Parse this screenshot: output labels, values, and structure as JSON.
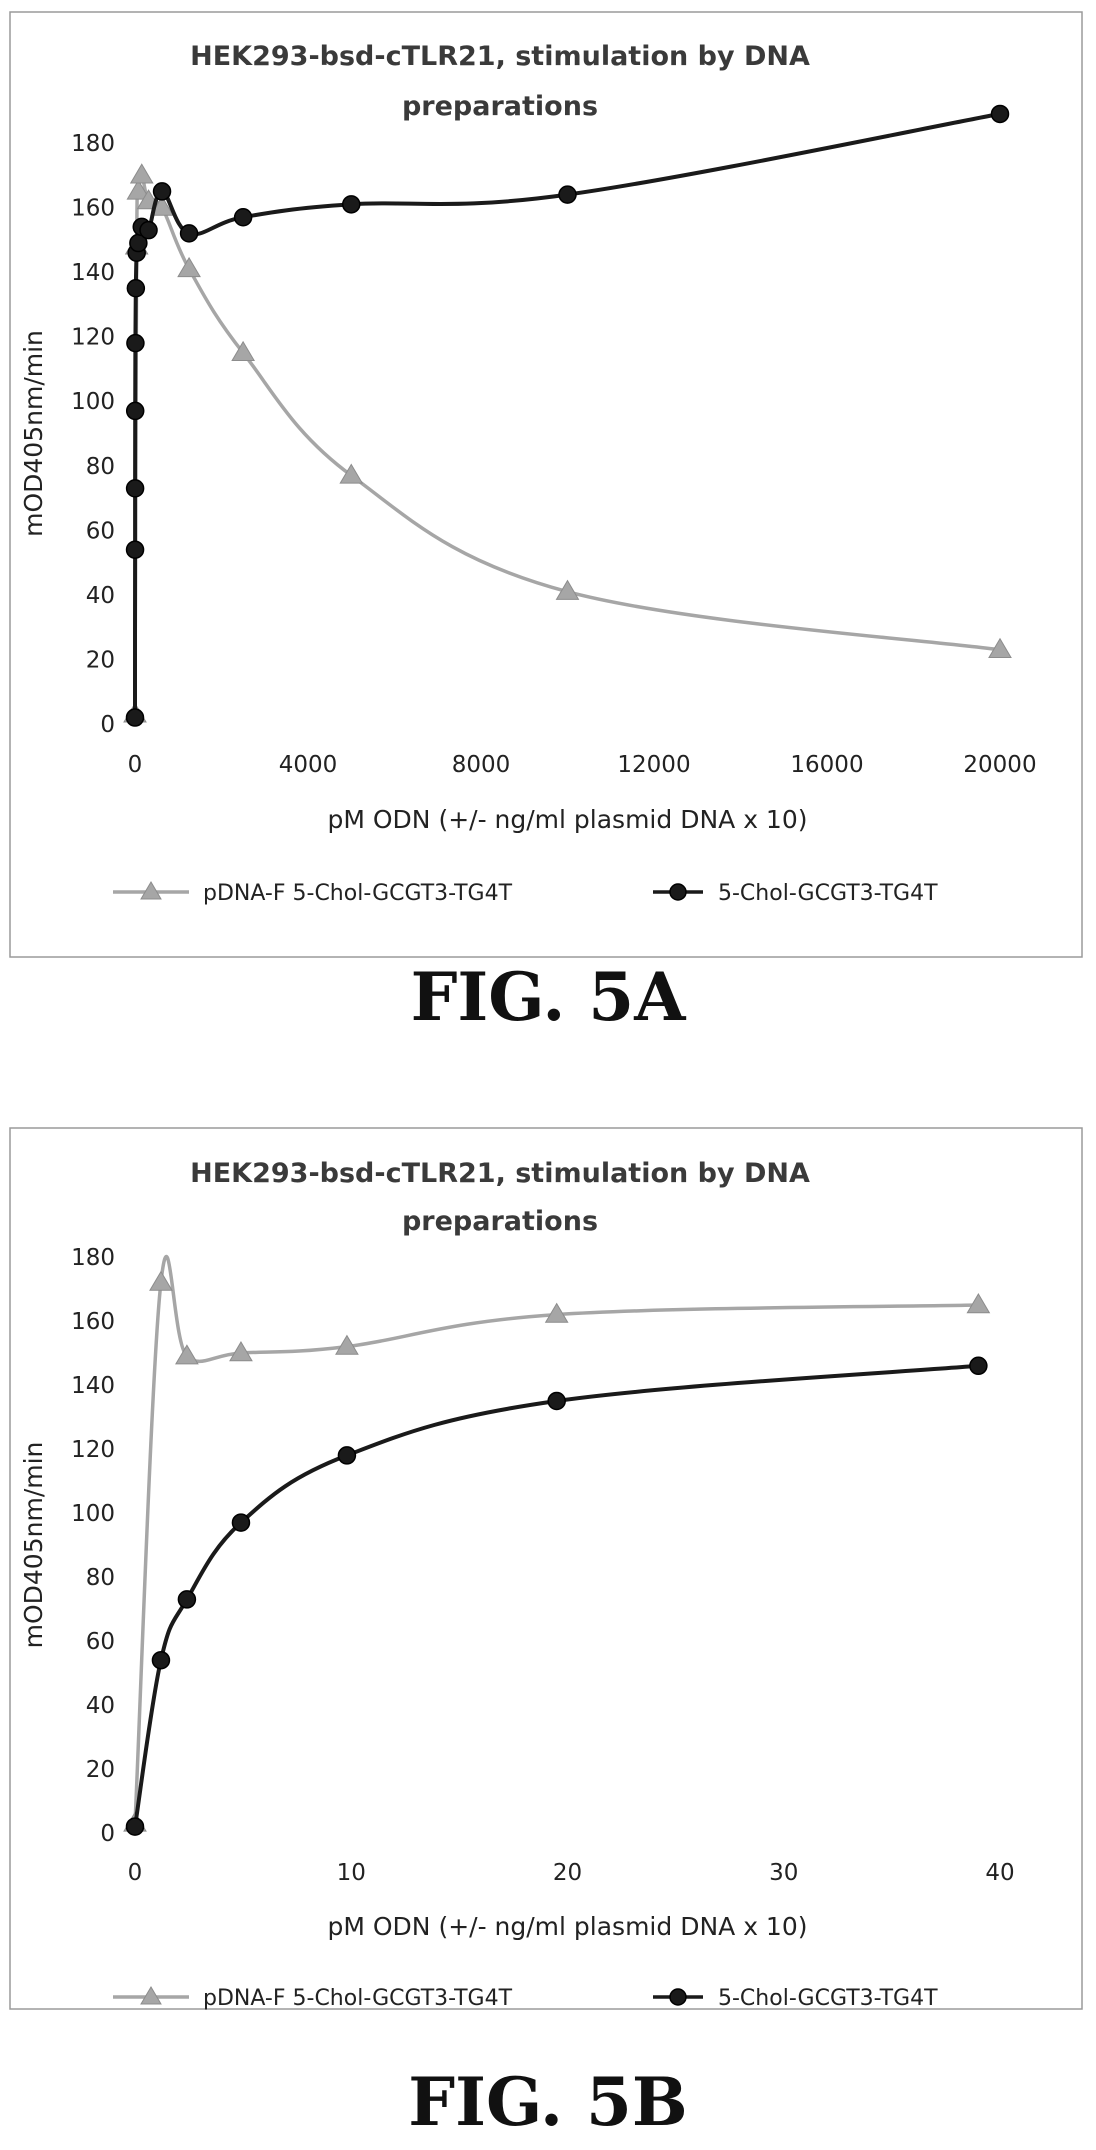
{
  "chart_data": [
    {
      "type": "line",
      "title": "HEK293-bsd-cTLR21, stimulation by DNA preparations",
      "title_lines": [
        "HEK293-bsd-cTLR21, stimulation by DNA",
        "preparations"
      ],
      "xlabel": "pM ODN (+/- ng/ml plasmid DNA  x 10)",
      "ylabel": "mOD405nm/min",
      "xlim": [
        0,
        20000
      ],
      "ylim": [
        0,
        180
      ],
      "xticks": [
        0,
        4000,
        8000,
        12000,
        16000,
        20000
      ],
      "xtick_labels": [
        "0",
        "4000",
        "8000",
        "12000",
        "16000",
        "20000"
      ],
      "yticks": [
        0,
        20,
        40,
        60,
        80,
        100,
        120,
        140,
        160,
        180
      ],
      "ytick_labels": [
        "0",
        "20",
        "40",
        "60",
        "80",
        "100",
        "120",
        "140",
        "160",
        "180"
      ],
      "legend_position": "bottom",
      "fig_label": "FIG. 5A",
      "series": [
        {
          "name": "pDNA-F 5-Chol-GCGT3-TG4T",
          "color": "#a6a6a6",
          "marker": "triangle",
          "x": [
            0,
            39,
            78,
            156,
            313,
            625,
            1250,
            2500,
            5000,
            10000,
            20000
          ],
          "y": [
            3,
            148,
            165,
            170,
            162,
            160,
            141,
            115,
            77,
            41,
            23
          ]
        },
        {
          "name": "5-Chol-GCGT3-TG4T",
          "color": "#1a1a1a",
          "marker": "circle",
          "x": [
            0,
            1.2,
            2.4,
            4.9,
            9.8,
            19.5,
            39,
            78,
            156,
            313,
            625,
            1250,
            2500,
            5000,
            10000,
            20000
          ],
          "y": [
            2,
            54,
            73,
            97,
            118,
            135,
            146,
            149,
            154,
            153,
            165,
            152,
            157,
            161,
            164,
            189
          ]
        }
      ]
    },
    {
      "type": "line",
      "title": "HEK293-bsd-cTLR21, stimulation by DNA preparations",
      "title_lines": [
        "HEK293-bsd-cTLR21, stimulation by DNA",
        "preparations"
      ],
      "xlabel": "pM ODN (+/- ng/ml plasmid DNA  x 10)",
      "ylabel": "mOD405nm/min",
      "xlim": [
        0,
        40
      ],
      "ylim": [
        0,
        180
      ],
      "xticks": [
        0,
        10,
        20,
        30,
        40
      ],
      "xtick_labels": [
        "0",
        "10",
        "20",
        "30",
        "40"
      ],
      "yticks": [
        0,
        20,
        40,
        60,
        80,
        100,
        120,
        140,
        160,
        180
      ],
      "ytick_labels": [
        "0",
        "20",
        "40",
        "60",
        "80",
        "100",
        "120",
        "140",
        "160",
        "180"
      ],
      "legend_position": "bottom",
      "fig_label": "FIG. 5B",
      "series": [
        {
          "name": "pDNA-F 5-Chol-GCGT3-TG4T",
          "color": "#a6a6a6",
          "marker": "triangle",
          "x": [
            0,
            1.2,
            2.4,
            4.9,
            9.8,
            19.5,
            39
          ],
          "y": [
            3,
            172,
            149,
            150,
            152,
            162,
            165
          ]
        },
        {
          "name": "5-Chol-GCGT3-TG4T",
          "color": "#1a1a1a",
          "marker": "circle",
          "x": [
            0,
            1.2,
            2.4,
            4.9,
            9.8,
            19.5,
            39
          ],
          "y": [
            2,
            54,
            73,
            97,
            118,
            135,
            146
          ]
        }
      ]
    }
  ]
}
